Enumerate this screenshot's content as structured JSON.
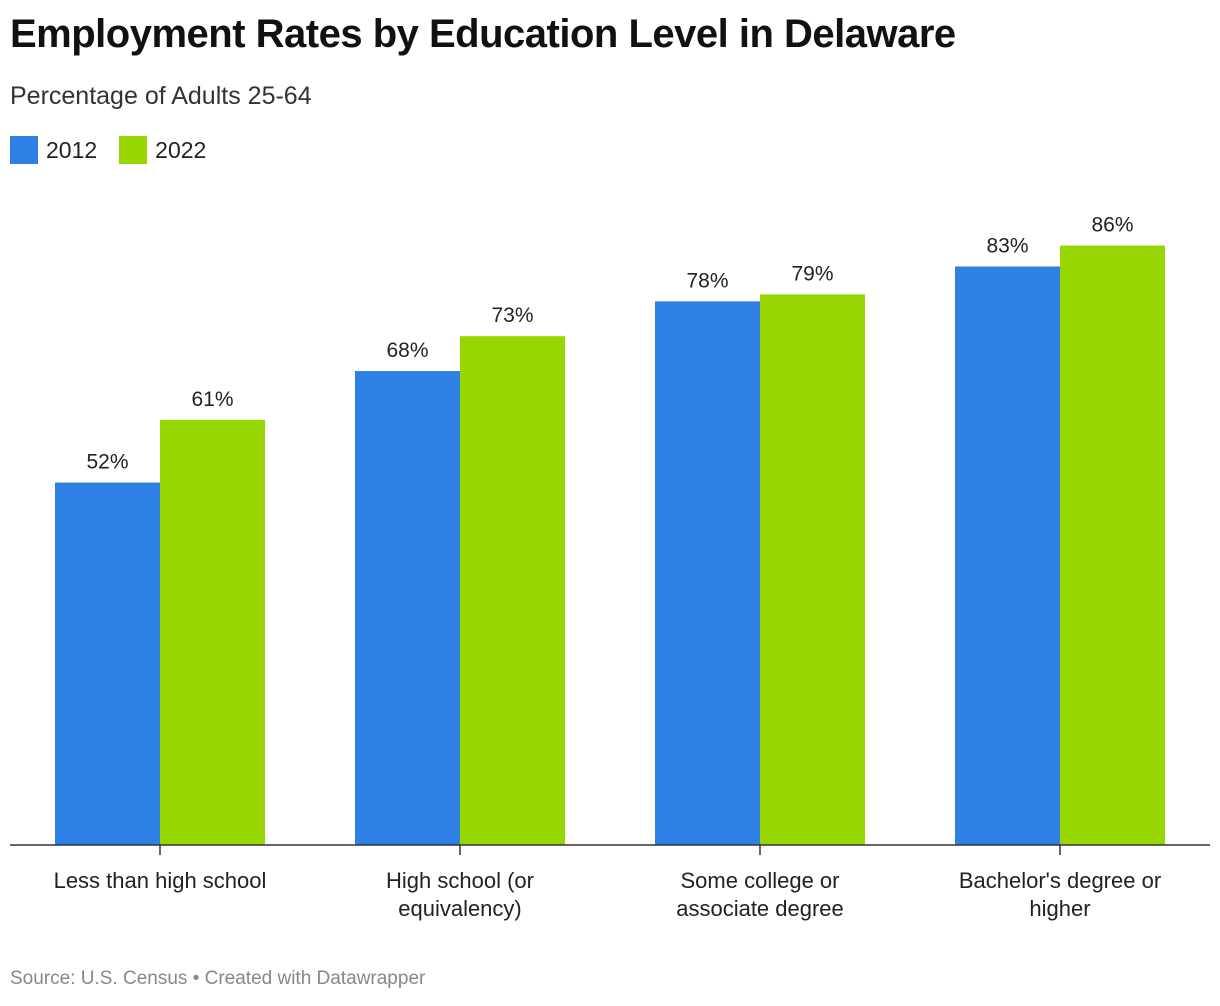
{
  "header": {
    "title": "Employment Rates by Education Level in Delaware",
    "subtitle": "Percentage of Adults 25-64"
  },
  "legend": {
    "items": [
      {
        "label": "2012",
        "color": "#2f80e4"
      },
      {
        "label": "2022",
        "color": "#97d600"
      }
    ]
  },
  "chart_data": {
    "type": "bar",
    "categories": [
      [
        "Less than high school"
      ],
      [
        "High school (or",
        "equivalency)"
      ],
      [
        "Some college or",
        "associate degree"
      ],
      [
        "Bachelor's degree or",
        "higher"
      ]
    ],
    "series": [
      {
        "name": "2012",
        "color": "#2f80e4",
        "values": [
          52,
          68,
          78,
          83
        ],
        "labels": [
          "52%",
          "68%",
          "78%",
          "83%"
        ]
      },
      {
        "name": "2022",
        "color": "#97d600",
        "values": [
          61,
          73,
          79,
          86
        ],
        "labels": [
          "61%",
          "73%",
          "79%",
          "86%"
        ]
      }
    ],
    "title": "Employment Rates by Education Level in Delaware",
    "subtitle": "Percentage of Adults 25-64",
    "xlabel": "",
    "ylabel": "",
    "ylim": [
      0,
      100
    ],
    "grid": false,
    "legend_position": "top-left"
  },
  "footer": {
    "source": "Source: U.S. Census • Created with Datawrapper"
  }
}
